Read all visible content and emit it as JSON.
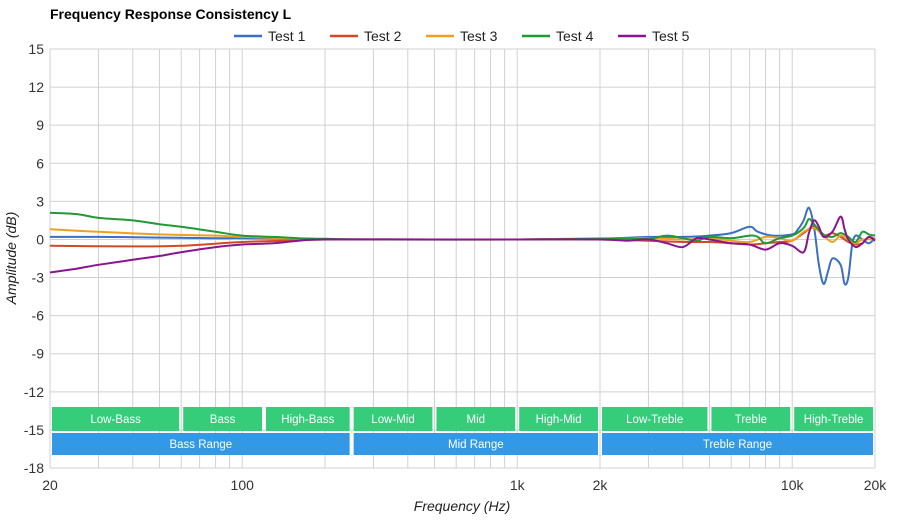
{
  "chart_data": {
    "type": "line",
    "title": "Frequency Response Consistency L",
    "xlabel": "Frequency (Hz)",
    "ylabel": "Amplitude (dB)",
    "x_scale": "log",
    "xlim": [
      20,
      20000
    ],
    "ylim": [
      -18,
      15
    ],
    "grid": true,
    "legend_position": "top-center",
    "x_ticks": [
      {
        "value": 20,
        "label": "20"
      },
      {
        "value": 100,
        "label": "100"
      },
      {
        "value": 1000,
        "label": "1k"
      },
      {
        "value": 2000,
        "label": "2k"
      },
      {
        "value": 10000,
        "label": "10k"
      },
      {
        "value": 20000,
        "label": "20k"
      }
    ],
    "y_ticks": [
      15,
      12,
      9,
      6,
      3,
      0,
      -3,
      -6,
      -9,
      -12,
      -15,
      -18
    ],
    "series": [
      {
        "name": "Test 1",
        "color": "#3a6fc4",
        "points": [
          [
            20,
            0.2
          ],
          [
            30,
            0.2
          ],
          [
            50,
            0.15
          ],
          [
            80,
            0.1
          ],
          [
            100,
            0.1
          ],
          [
            150,
            0.05
          ],
          [
            200,
            0
          ],
          [
            500,
            0
          ],
          [
            1000,
            0
          ],
          [
            2000,
            0.05
          ],
          [
            3000,
            0.2
          ],
          [
            4000,
            0.2
          ],
          [
            5000,
            0.3
          ],
          [
            6000,
            0.5
          ],
          [
            7000,
            1.0
          ],
          [
            7500,
            0.6
          ],
          [
            8500,
            0.3
          ],
          [
            10000,
            0.4
          ],
          [
            10500,
            0.8
          ],
          [
            11000,
            1.5
          ],
          [
            11500,
            2.5
          ],
          [
            12000,
            1.0
          ],
          [
            12500,
            -2.0
          ],
          [
            13000,
            -3.5
          ],
          [
            13500,
            -2.5
          ],
          [
            14000,
            -1.5
          ],
          [
            15000,
            -2.0
          ],
          [
            15500,
            -3.5
          ],
          [
            16000,
            -3.0
          ],
          [
            16500,
            -0.5
          ],
          [
            17000,
            0.3
          ],
          [
            18000,
            0
          ],
          [
            19000,
            -0.3
          ],
          [
            20000,
            0.1
          ]
        ]
      },
      {
        "name": "Test 2",
        "color": "#d24a24",
        "points": [
          [
            20,
            -0.5
          ],
          [
            40,
            -0.55
          ],
          [
            60,
            -0.5
          ],
          [
            100,
            -0.2
          ],
          [
            150,
            -0.1
          ],
          [
            200,
            0
          ],
          [
            500,
            0
          ],
          [
            1000,
            0
          ],
          [
            2000,
            0
          ],
          [
            3000,
            -0.1
          ],
          [
            4000,
            -0.2
          ],
          [
            5000,
            -0.2
          ],
          [
            6000,
            -0.3
          ],
          [
            7000,
            -0.4
          ],
          [
            8000,
            -0.3
          ],
          [
            9000,
            -0.2
          ],
          [
            10000,
            -0.1
          ],
          [
            11000,
            0.5
          ],
          [
            12000,
            1.0
          ],
          [
            13000,
            0.3
          ],
          [
            14000,
            0.5
          ],
          [
            15000,
            0.2
          ],
          [
            16000,
            -0.2
          ],
          [
            17000,
            -0.4
          ],
          [
            18000,
            -0.3
          ],
          [
            19000,
            0.2
          ],
          [
            20000,
            0
          ]
        ]
      },
      {
        "name": "Test 3",
        "color": "#f0a020",
        "points": [
          [
            20,
            0.8
          ],
          [
            30,
            0.6
          ],
          [
            50,
            0.4
          ],
          [
            80,
            0.3
          ],
          [
            100,
            0.2
          ],
          [
            150,
            0.1
          ],
          [
            200,
            0
          ],
          [
            500,
            0
          ],
          [
            1000,
            0
          ],
          [
            2000,
            0.1
          ],
          [
            3000,
            0.1
          ],
          [
            4000,
            0
          ],
          [
            5000,
            0.1
          ],
          [
            6000,
            -0.1
          ],
          [
            7000,
            -0.2
          ],
          [
            8000,
            0.2
          ],
          [
            9000,
            0.1
          ],
          [
            10000,
            -0.1
          ],
          [
            11000,
            0.6
          ],
          [
            12000,
            0.9
          ],
          [
            13000,
            0.3
          ],
          [
            14000,
            -0.2
          ],
          [
            15000,
            0.3
          ],
          [
            16000,
            0
          ],
          [
            17000,
            -0.3
          ],
          [
            18000,
            0
          ],
          [
            20000,
            0
          ]
        ]
      },
      {
        "name": "Test 4",
        "color": "#1f9a36",
        "points": [
          [
            20,
            2.1
          ],
          [
            25,
            2.0
          ],
          [
            30,
            1.7
          ],
          [
            40,
            1.5
          ],
          [
            50,
            1.2
          ],
          [
            60,
            1.0
          ],
          [
            80,
            0.6
          ],
          [
            100,
            0.3
          ],
          [
            130,
            0.2
          ],
          [
            160,
            0.1
          ],
          [
            200,
            0.05
          ],
          [
            300,
            0
          ],
          [
            1000,
            0
          ],
          [
            2000,
            0.05
          ],
          [
            2500,
            0.1
          ],
          [
            3000,
            0.05
          ],
          [
            3500,
            0.3
          ],
          [
            4000,
            0.1
          ],
          [
            4500,
            -0.1
          ],
          [
            5000,
            0.2
          ],
          [
            6000,
            0.1
          ],
          [
            7000,
            0.3
          ],
          [
            7500,
            0.2
          ],
          [
            8000,
            -0.3
          ],
          [
            9000,
            0.1
          ],
          [
            10000,
            0.3
          ],
          [
            11000,
            0.9
          ],
          [
            11500,
            1.6
          ],
          [
            12000,
            1.2
          ],
          [
            13000,
            0.4
          ],
          [
            14000,
            0.2
          ],
          [
            15000,
            0.5
          ],
          [
            16000,
            0.2
          ],
          [
            17000,
            -0.2
          ],
          [
            18000,
            0.6
          ],
          [
            19000,
            0.4
          ],
          [
            20000,
            0.3
          ]
        ]
      },
      {
        "name": "Test 5",
        "color": "#8a168f",
        "points": [
          [
            20,
            -2.6
          ],
          [
            25,
            -2.3
          ],
          [
            30,
            -2.0
          ],
          [
            40,
            -1.6
          ],
          [
            50,
            -1.3
          ],
          [
            60,
            -1.0
          ],
          [
            80,
            -0.6
          ],
          [
            100,
            -0.4
          ],
          [
            130,
            -0.3
          ],
          [
            160,
            -0.1
          ],
          [
            200,
            0
          ],
          [
            500,
            0
          ],
          [
            1000,
            0
          ],
          [
            2000,
            0
          ],
          [
            2500,
            -0.1
          ],
          [
            3000,
            0
          ],
          [
            3500,
            -0.3
          ],
          [
            4000,
            -0.6
          ],
          [
            4500,
            0.1
          ],
          [
            5000,
            0
          ],
          [
            6000,
            -0.3
          ],
          [
            7000,
            -0.4
          ],
          [
            8000,
            -0.8
          ],
          [
            9000,
            -0.3
          ],
          [
            10000,
            -0.5
          ],
          [
            11000,
            -1.0
          ],
          [
            11500,
            0.5
          ],
          [
            12000,
            1.5
          ],
          [
            12500,
            1.0
          ],
          [
            13000,
            0.2
          ],
          [
            14000,
            0.6
          ],
          [
            15000,
            1.8
          ],
          [
            15500,
            0.8
          ],
          [
            16000,
            0
          ],
          [
            17000,
            -0.6
          ],
          [
            18000,
            -0.3
          ],
          [
            19000,
            0.2
          ],
          [
            20000,
            -0.1
          ]
        ]
      }
    ],
    "bands_row1": [
      {
        "label": "Low-Bass",
        "from": 20,
        "to": 60
      },
      {
        "label": "Bass",
        "from": 60,
        "to": 120
      },
      {
        "label": "High-Bass",
        "from": 120,
        "to": 250
      },
      {
        "label": "Low-Mid",
        "from": 250,
        "to": 500
      },
      {
        "label": "Mid",
        "from": 500,
        "to": 1000
      },
      {
        "label": "High-Mid",
        "from": 1000,
        "to": 2000
      },
      {
        "label": "Low-Treble",
        "from": 2000,
        "to": 5000
      },
      {
        "label": "Treble",
        "from": 5000,
        "to": 10000
      },
      {
        "label": "High-Treble",
        "from": 10000,
        "to": 20000
      }
    ],
    "bands_row2": [
      {
        "label": "Bass Range",
        "from": 20,
        "to": 250
      },
      {
        "label": "Mid Range",
        "from": 250,
        "to": 2000
      },
      {
        "label": "Treble Range",
        "from": 2000,
        "to": 20000
      }
    ],
    "band_colors": {
      "row1": "#35cc7a",
      "row2": "#3399e6"
    }
  }
}
